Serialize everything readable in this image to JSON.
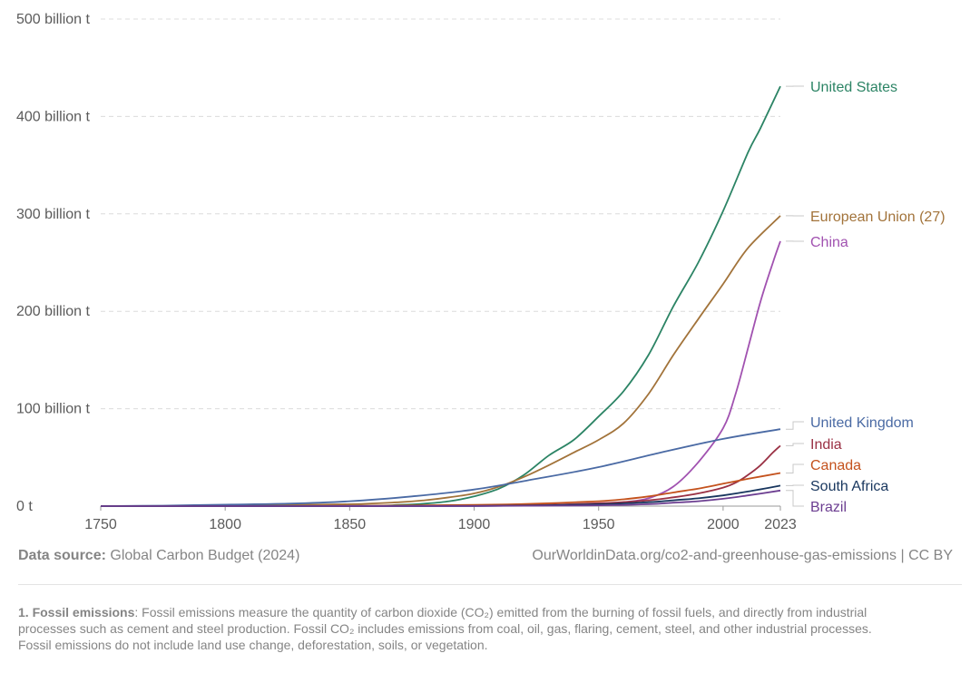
{
  "chart_data": {
    "type": "line",
    "title": "",
    "xlabel": "",
    "ylabel": "",
    "xlim": [
      1750,
      2023
    ],
    "ylim": [
      0,
      500
    ],
    "y_ticks": [
      {
        "value": 0,
        "label": "0 t"
      },
      {
        "value": 100,
        "label": "100 billion t"
      },
      {
        "value": 200,
        "label": "200 billion t"
      },
      {
        "value": 300,
        "label": "300 billion t"
      },
      {
        "value": 400,
        "label": "400 billion t"
      },
      {
        "value": 500,
        "label": "500 billion t"
      }
    ],
    "x_ticks": [
      {
        "value": 1750,
        "label": "1750"
      },
      {
        "value": 1800,
        "label": "1800"
      },
      {
        "value": 1850,
        "label": "1850"
      },
      {
        "value": 1900,
        "label": "1900"
      },
      {
        "value": 1950,
        "label": "1950"
      },
      {
        "value": 2000,
        "label": "2000"
      },
      {
        "value": 2023,
        "label": "2023"
      }
    ],
    "series": [
      {
        "name": "United States",
        "color": "#2c8465",
        "label_value": 431,
        "x": [
          1750,
          1850,
          1870,
          1880,
          1890,
          1900,
          1910,
          1920,
          1930,
          1940,
          1950,
          1960,
          1970,
          1980,
          1990,
          2000,
          2010,
          2015,
          2023
        ],
        "y": [
          0,
          0.3,
          1.2,
          2.5,
          5,
          10,
          18,
          32,
          52,
          68,
          92,
          118,
          155,
          205,
          250,
          303,
          363,
          388,
          431
        ]
      },
      {
        "name": "European Union (27)",
        "color": "#a2733a",
        "label_value": 298,
        "x": [
          1750,
          1800,
          1850,
          1870,
          1880,
          1890,
          1900,
          1910,
          1920,
          1930,
          1940,
          1950,
          1960,
          1970,
          1980,
          1990,
          2000,
          2010,
          2023
        ],
        "y": [
          0,
          0.3,
          2,
          4,
          6,
          9,
          13,
          20,
          30,
          42,
          55,
          68,
          85,
          115,
          155,
          192,
          228,
          265,
          298
        ]
      },
      {
        "name": "China",
        "color": "#a152b0",
        "label_value": 272,
        "x": [
          1750,
          1900,
          1950,
          1960,
          1970,
          1980,
          1990,
          2000,
          2005,
          2010,
          2015,
          2020,
          2023
        ],
        "y": [
          0,
          0.1,
          2,
          4,
          8,
          20,
          45,
          80,
          115,
          162,
          210,
          250,
          272
        ]
      },
      {
        "name": "United Kingdom",
        "color": "#4a6aa4",
        "label_value": 79,
        "x": [
          1750,
          1775,
          1800,
          1825,
          1850,
          1875,
          1900,
          1925,
          1950,
          1975,
          2000,
          2023
        ],
        "y": [
          0,
          0.5,
          1.5,
          2.5,
          5,
          10,
          17,
          28,
          40,
          55,
          69,
          79
        ]
      },
      {
        "name": "India",
        "color": "#9a3144",
        "label_value": 62,
        "x": [
          1750,
          1900,
          1950,
          1970,
          1980,
          1990,
          2000,
          2005,
          2010,
          2015,
          2020,
          2023
        ],
        "y": [
          0,
          0.4,
          3,
          6,
          9,
          13,
          19,
          24,
          32,
          42,
          55,
          62
        ]
      },
      {
        "name": "Canada",
        "color": "#c4521d",
        "label_value": 34,
        "x": [
          1750,
          1850,
          1900,
          1925,
          1950,
          1960,
          1970,
          1980,
          1990,
          2000,
          2010,
          2023
        ],
        "y": [
          0,
          0.2,
          1.2,
          2.5,
          5,
          7,
          10,
          14,
          18,
          23,
          28,
          34
        ]
      },
      {
        "name": "South Africa",
        "color": "#18365e",
        "label_value": 21,
        "x": [
          1750,
          1900,
          1950,
          1970,
          1980,
          1990,
          2000,
          2010,
          2023
        ],
        "y": [
          0,
          0.2,
          2,
          4,
          6,
          8,
          11,
          15,
          21
        ]
      },
      {
        "name": "Brazil",
        "color": "#6c3e91",
        "label_value": 16,
        "x": [
          1750,
          1900,
          1950,
          1970,
          1980,
          1990,
          2000,
          2010,
          2023
        ],
        "y": [
          0,
          0.1,
          0.8,
          2,
          3.5,
          5,
          7.5,
          11,
          16
        ]
      }
    ]
  },
  "footer": {
    "source_label": "Data source:",
    "source_text": "Global Carbon Budget (2024)",
    "license_text": "OurWorldinData.org/co2-and-greenhouse-gas-emissions | CC BY"
  },
  "footnote": {
    "title": "1. Fossil emissions",
    "text": ": Fossil emissions measure the quantity of carbon dioxide (CO₂) emitted from the burning of fossil fuels, and directly from industrial processes such as cement and steel production. Fossil CO₂ includes emissions from coal, oil, gas, flaring, cement, steel, and other industrial processes. Fossil emissions do not include land use change, deforestation, soils, or vegetation."
  }
}
